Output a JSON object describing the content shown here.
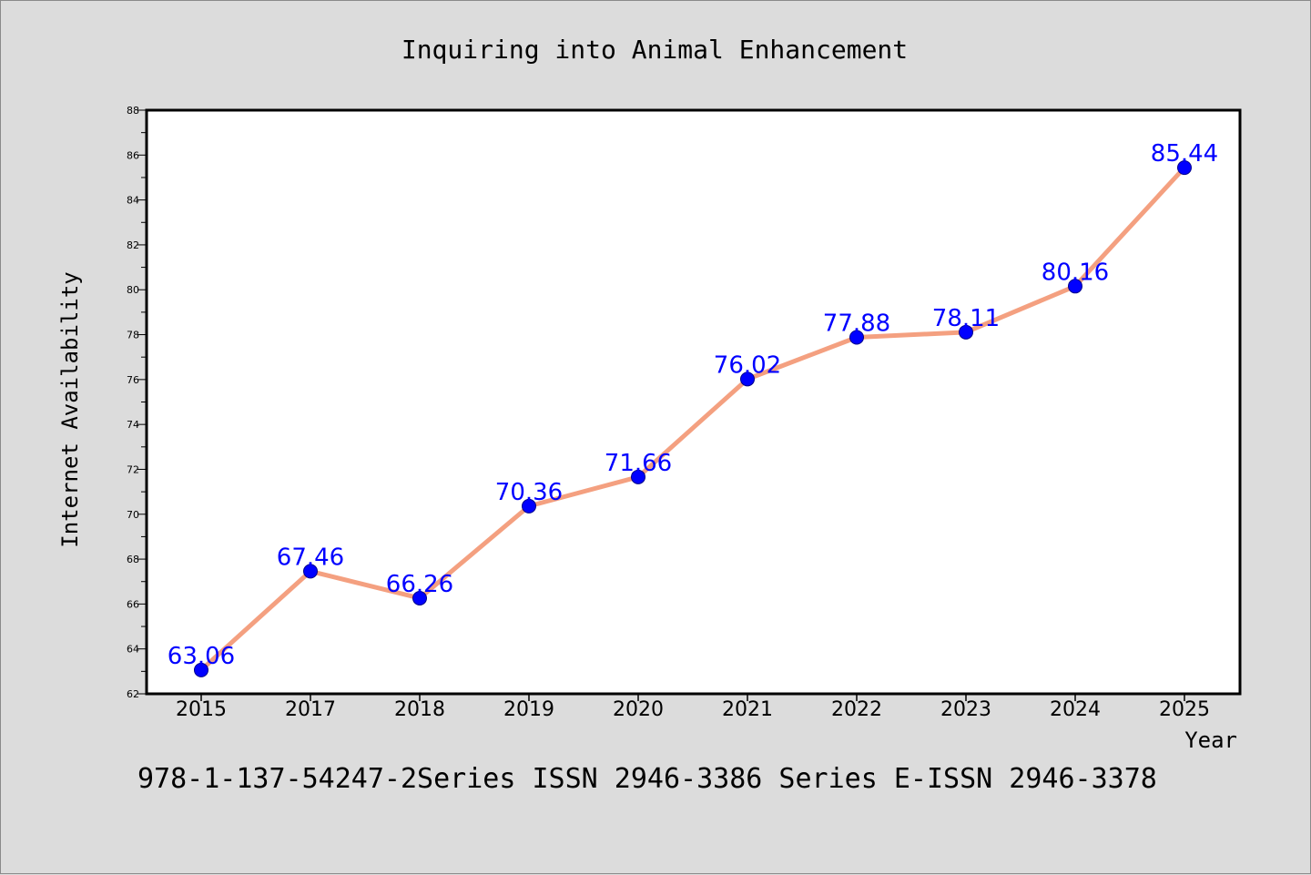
{
  "chart_data": {
    "type": "line",
    "title": "Inquiring into Animal Enhancement",
    "xlabel": "Year",
    "ylabel": "Internet Availability",
    "x": [
      "2015",
      "2017",
      "2018",
      "2019",
      "2020",
      "2021",
      "2022",
      "2023",
      "2024",
      "2025"
    ],
    "values": [
      63.06,
      67.46,
      66.26,
      70.36,
      71.66,
      76.02,
      77.88,
      78.11,
      80.16,
      85.44
    ],
    "data_labels": [
      "63.06",
      "67.46",
      "66.26",
      "70.36",
      "71.66",
      "76.02",
      "77.88",
      "78.11",
      "80.16",
      "85.44"
    ],
    "ylim": [
      62,
      88
    ],
    "y_ticks": [
      "62",
      "64",
      "66",
      "68",
      "70",
      "72",
      "74",
      "76",
      "78",
      "80",
      "82",
      "84",
      "86",
      "88"
    ],
    "grid": false,
    "legend": "none",
    "line_color": "#f4a080",
    "marker_color": "#0000ff",
    "label_color": "#0000ff"
  },
  "footer_text": "978-1-137-54247-2Series ISSN 2946-3386 Series E-ISSN 2946-3378"
}
